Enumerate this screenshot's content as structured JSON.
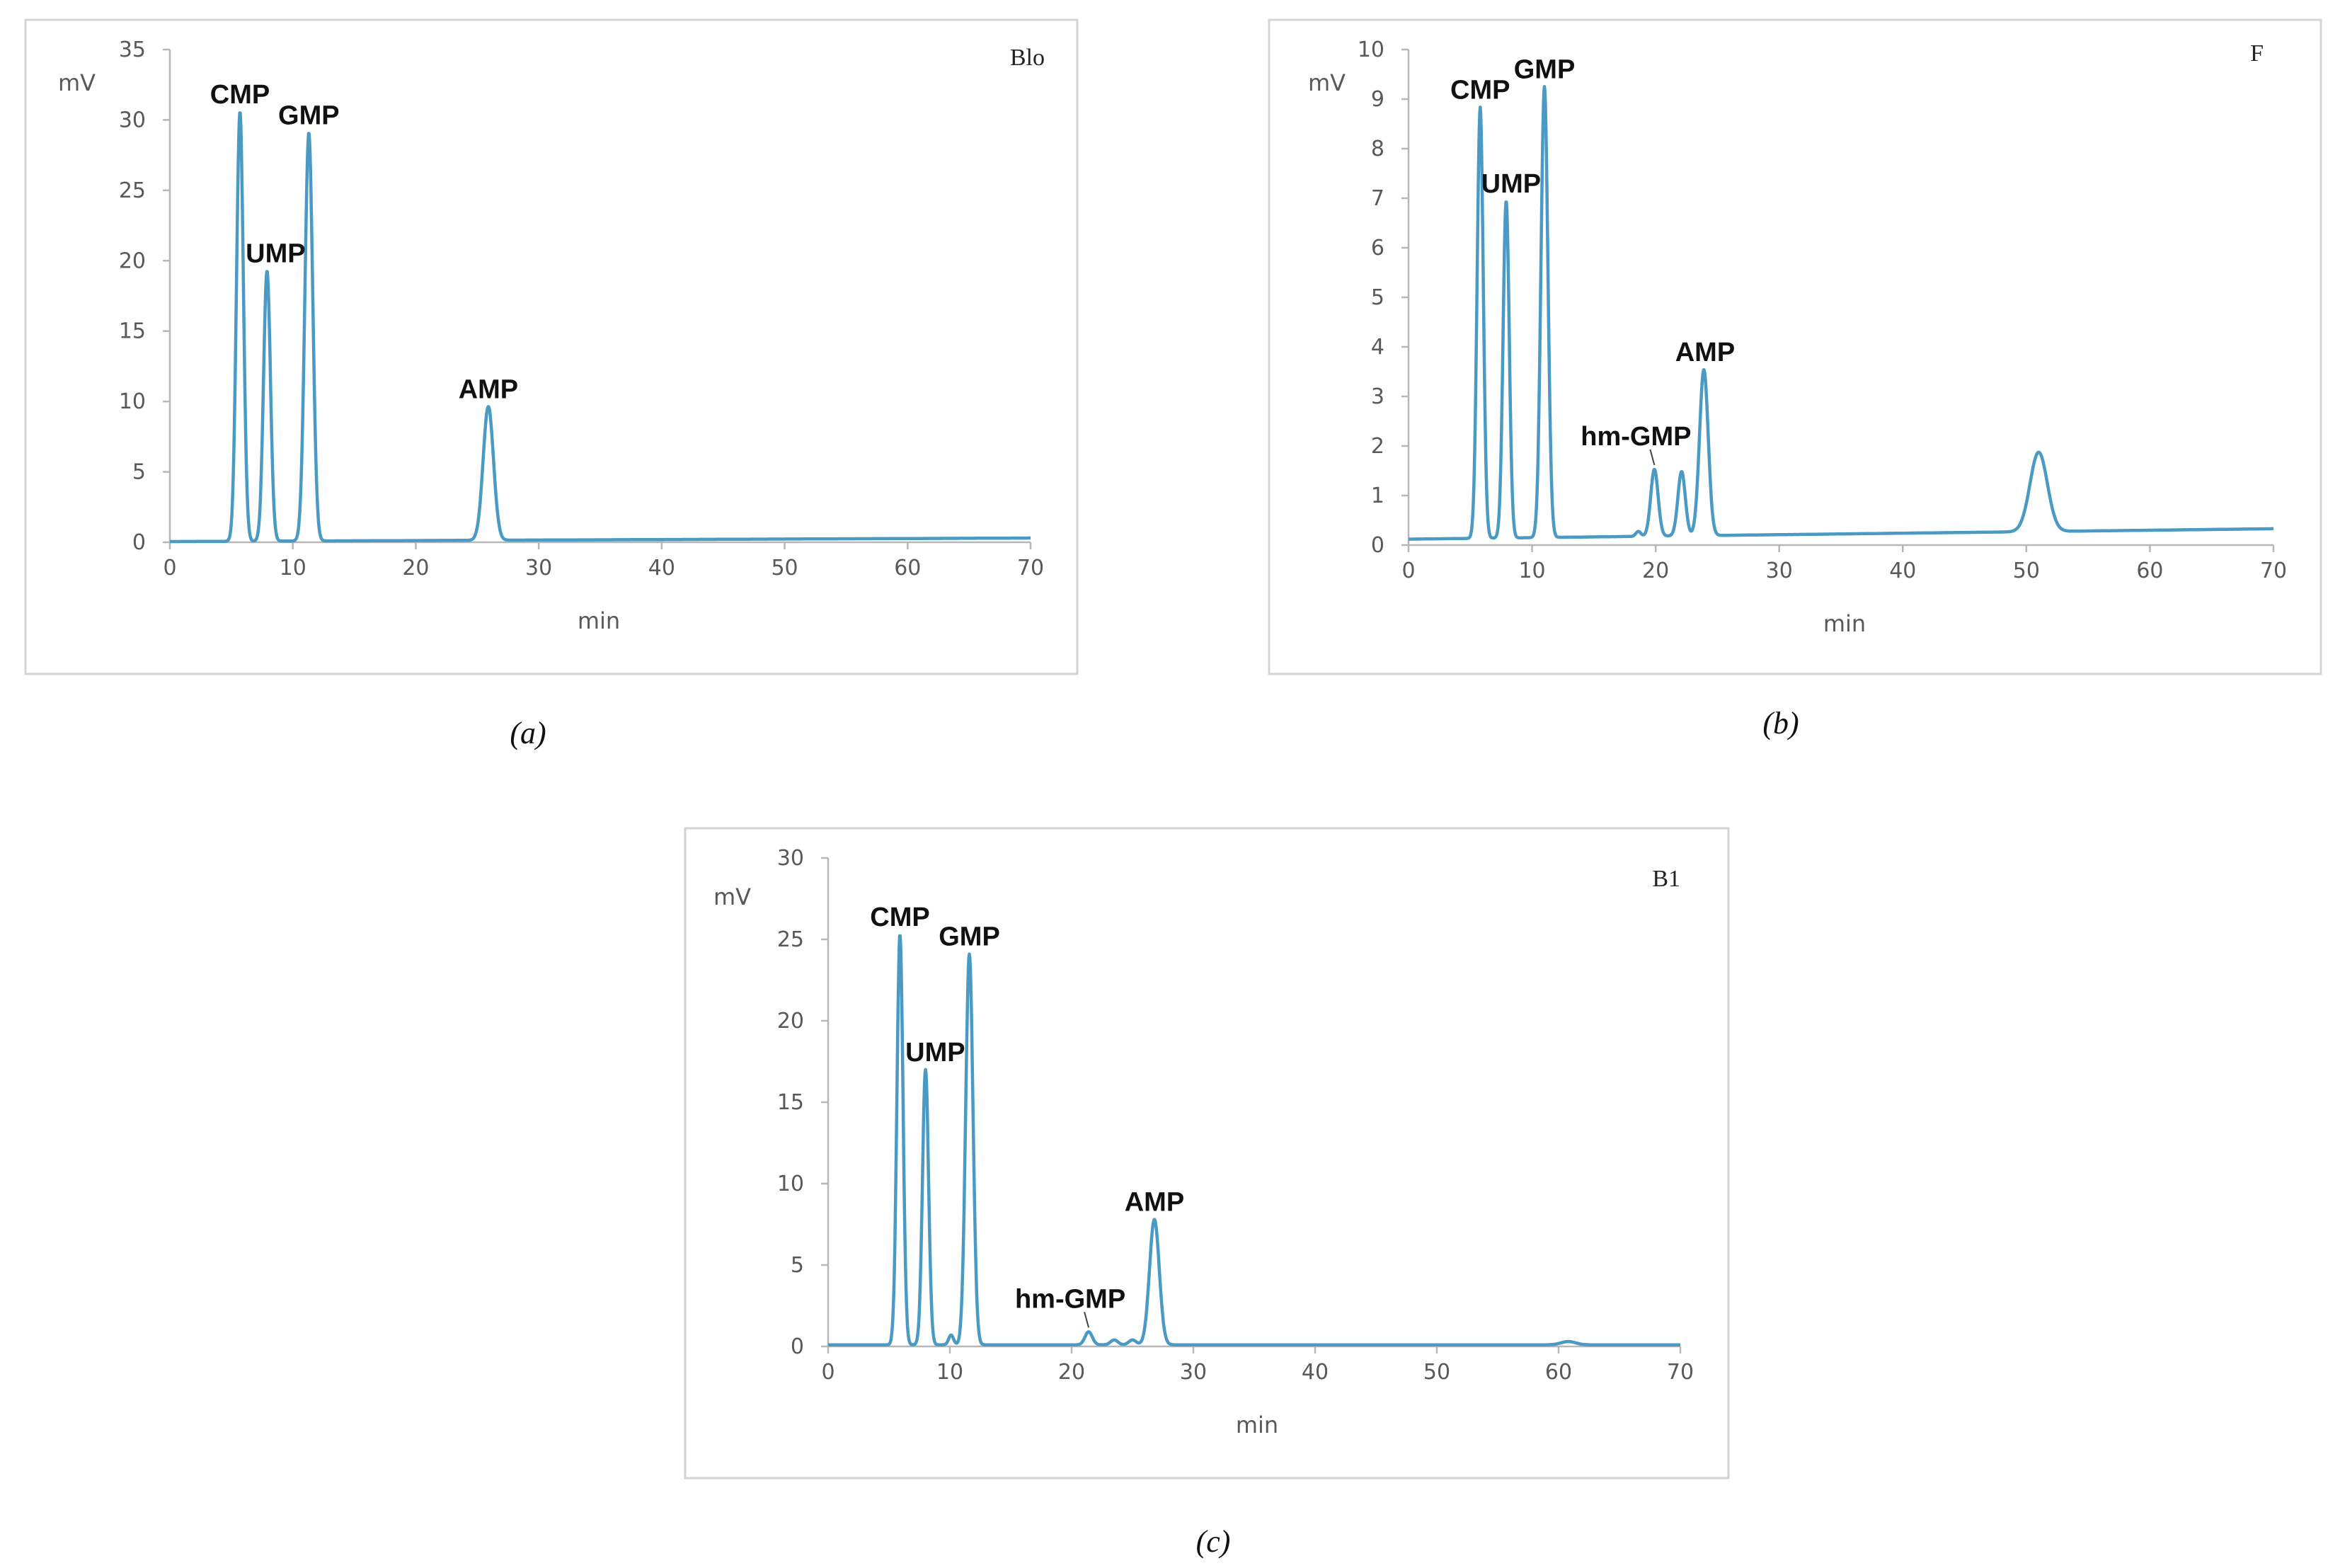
{
  "chart_data": [
    {
      "type": "line",
      "panel_caption": "(a)",
      "corner_label": "Blo",
      "xlabel": "min",
      "ylabel": "mV",
      "xlim": [
        0,
        70
      ],
      "ylim": [
        0,
        35
      ],
      "x_ticks": [
        0,
        10,
        20,
        30,
        40,
        50,
        60,
        70
      ],
      "y_ticks": [
        0,
        5,
        10,
        15,
        20,
        25,
        30,
        35
      ],
      "grid": false,
      "baseline": {
        "start": 0.05,
        "end": 0.3
      },
      "peaks": [
        {
          "name": "CMP",
          "x": 5.7,
          "y": 30.5,
          "width": 0.28
        },
        {
          "name": "UMP",
          "x": 7.9,
          "y": 19.2,
          "width": 0.28
        },
        {
          "name": "GMP",
          "x": 11.3,
          "y": 29.0,
          "width": 0.32
        },
        {
          "name": "AMP",
          "x": 25.9,
          "y": 9.5,
          "width": 0.42
        }
      ],
      "annotations": [
        {
          "text": "CMP",
          "x": 5.7
        },
        {
          "text": "UMP",
          "x": 8.6
        },
        {
          "text": "GMP",
          "x": 11.3
        },
        {
          "text": "AMP",
          "x": 25.9
        }
      ]
    },
    {
      "type": "line",
      "panel_caption": "(b)",
      "corner_label": "F",
      "xlabel": "min",
      "ylabel": "mV",
      "xlim": [
        0,
        70
      ],
      "ylim": [
        0,
        10
      ],
      "x_ticks": [
        0,
        10,
        20,
        30,
        40,
        50,
        60,
        70
      ],
      "y_ticks": [
        0,
        1,
        2,
        3,
        4,
        5,
        6,
        7,
        8,
        9,
        10
      ],
      "grid": false,
      "baseline": {
        "start": 0.12,
        "end": 0.33
      },
      "peaks": [
        {
          "name": "CMP",
          "x": 5.8,
          "y": 8.7,
          "width": 0.25
        },
        {
          "name": "UMP",
          "x": 7.9,
          "y": 6.8,
          "width": 0.25
        },
        {
          "name": "GMP",
          "x": 11.0,
          "y": 9.1,
          "width": 0.28
        },
        {
          "name": "",
          "x": 18.6,
          "y": 0.1,
          "width": 0.2
        },
        {
          "name": "hm-GMP",
          "x": 19.9,
          "y": 1.35,
          "width": 0.3
        },
        {
          "name": "",
          "x": 22.1,
          "y": 1.3,
          "width": 0.3
        },
        {
          "name": "AMP",
          "x": 23.9,
          "y": 3.35,
          "width": 0.35
        },
        {
          "name": "",
          "x": 51.0,
          "y": 1.6,
          "width": 0.7
        }
      ],
      "annotations": [
        {
          "text": "CMP",
          "x": 5.8
        },
        {
          "text": "UMP",
          "x": 8.3
        },
        {
          "text": "GMP",
          "x": 11.0
        },
        {
          "text": "hm-GMP",
          "x": 19.7
        },
        {
          "text": "AMP",
          "x": 24.0
        }
      ]
    },
    {
      "type": "line",
      "panel_caption": "(c)",
      "corner_label": "B1",
      "xlabel": "min",
      "ylabel": "mV",
      "xlim": [
        0,
        70
      ],
      "ylim": [
        0,
        30
      ],
      "x_ticks": [
        0,
        10,
        20,
        30,
        40,
        50,
        60,
        70
      ],
      "y_ticks": [
        0,
        5,
        10,
        15,
        20,
        25,
        30
      ],
      "grid": false,
      "baseline": {
        "start": 0.1,
        "end": 0.1
      },
      "peaks": [
        {
          "name": "CMP",
          "x": 5.9,
          "y": 25.2,
          "width": 0.25
        },
        {
          "name": "UMP",
          "x": 8.0,
          "y": 16.9,
          "width": 0.25
        },
        {
          "name": "",
          "x": 10.1,
          "y": 0.6,
          "width": 0.2
        },
        {
          "name": "GMP",
          "x": 11.6,
          "y": 24.0,
          "width": 0.3
        },
        {
          "name": "hm-GMP",
          "x": 21.4,
          "y": 0.8,
          "width": 0.3
        },
        {
          "name": "",
          "x": 23.5,
          "y": 0.3,
          "width": 0.3
        },
        {
          "name": "",
          "x": 25.0,
          "y": 0.3,
          "width": 0.3
        },
        {
          "name": "AMP",
          "x": 26.8,
          "y": 7.7,
          "width": 0.4
        },
        {
          "name": "",
          "x": 60.8,
          "y": 0.2,
          "width": 0.6
        }
      ],
      "annotations": [
        {
          "text": "CMP",
          "x": 5.9
        },
        {
          "text": "UMP",
          "x": 8.8
        },
        {
          "text": "GMP",
          "x": 11.6
        },
        {
          "text": "hm-GMP",
          "x": 21.0
        },
        {
          "text": "AMP",
          "x": 26.8
        }
      ]
    }
  ]
}
